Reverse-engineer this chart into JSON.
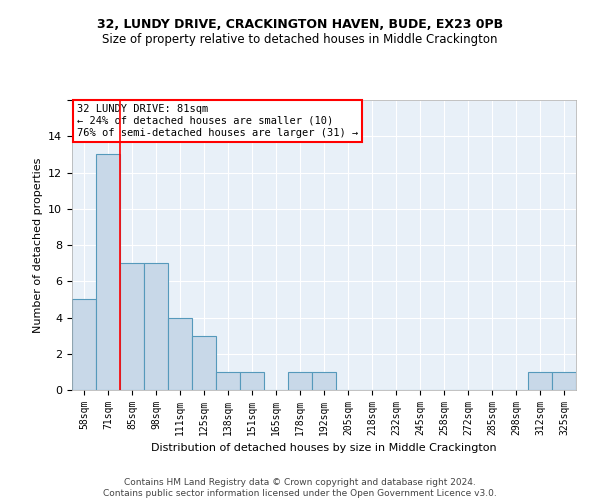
{
  "title": "32, LUNDY DRIVE, CRACKINGTON HAVEN, BUDE, EX23 0PB",
  "subtitle": "Size of property relative to detached houses in Middle Crackington",
  "xlabel": "Distribution of detached houses by size in Middle Crackington",
  "ylabel": "Number of detached properties",
  "footer_line1": "Contains HM Land Registry data © Crown copyright and database right 2024.",
  "footer_line2": "Contains public sector information licensed under the Open Government Licence v3.0.",
  "bin_labels": [
    "58sqm",
    "71sqm",
    "85sqm",
    "98sqm",
    "111sqm",
    "125sqm",
    "138sqm",
    "151sqm",
    "165sqm",
    "178sqm",
    "192sqm",
    "205sqm",
    "218sqm",
    "232sqm",
    "245sqm",
    "258sqm",
    "272sqm",
    "285sqm",
    "298sqm",
    "312sqm",
    "325sqm"
  ],
  "bin_values": [
    5,
    13,
    7,
    7,
    4,
    3,
    1,
    1,
    0,
    1,
    1,
    0,
    0,
    0,
    0,
    0,
    0,
    0,
    0,
    1,
    1
  ],
  "bar_color": "#c8d8e8",
  "bar_edge_color": "#5599bb",
  "bg_color": "#e8f0f8",
  "grid_color": "#ffffff",
  "red_line_x": 1.5,
  "annotation_text_line1": "32 LUNDY DRIVE: 81sqm",
  "annotation_text_line2": "← 24% of detached houses are smaller (10)",
  "annotation_text_line3": "76% of semi-detached houses are larger (31) →",
  "ylim": [
    0,
    16
  ],
  "yticks": [
    0,
    2,
    4,
    6,
    8,
    10,
    12,
    14,
    16
  ],
  "title_fontsize": 9,
  "subtitle_fontsize": 8.5,
  "ylabel_fontsize": 8,
  "xlabel_fontsize": 8,
  "tick_fontsize": 7,
  "footer_fontsize": 6.5,
  "annotation_fontsize": 7.5
}
